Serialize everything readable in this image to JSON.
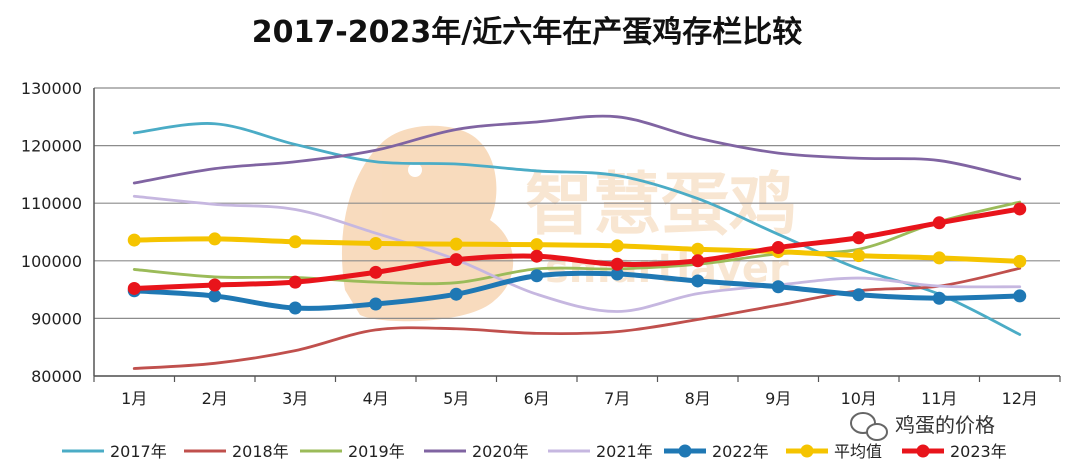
{
  "chart_data": {
    "type": "line",
    "title": "2017-2023年/近六年在产蛋鸡存栏比较",
    "xlabel": "",
    "ylabel": "",
    "categories": [
      "1月",
      "2月",
      "3月",
      "4月",
      "5月",
      "6月",
      "7月",
      "8月",
      "9月",
      "10月",
      "11月",
      "12月"
    ],
    "ylim": [
      80000,
      130000
    ],
    "yticks": [
      80000,
      90000,
      100000,
      110000,
      120000,
      130000
    ],
    "grid": true,
    "legend_position": "bottom",
    "series": [
      {
        "name": "2017年",
        "color": "#4bacc6",
        "emphasis": false,
        "values": [
          122200,
          123800,
          120200,
          117200,
          116800,
          115600,
          114800,
          110800,
          104600,
          98600,
          94200,
          87200
        ]
      },
      {
        "name": "2018年",
        "color": "#c0504d",
        "emphasis": false,
        "values": [
          81300,
          82200,
          84400,
          88000,
          88200,
          87400,
          87700,
          89800,
          92300,
          94800,
          95600,
          98700
        ]
      },
      {
        "name": "2019年",
        "color": "#9bbb59",
        "emphasis": false,
        "values": [
          98500,
          97200,
          97100,
          96300,
          96200,
          98600,
          98600,
          99400,
          101200,
          102000,
          106800,
          110200
        ]
      },
      {
        "name": "2020年",
        "color": "#8064a2",
        "emphasis": false,
        "values": [
          113500,
          116000,
          117200,
          119200,
          122800,
          124100,
          125000,
          121300,
          118700,
          117800,
          117400,
          114200
        ]
      },
      {
        "name": "2021年",
        "color": "#c6b7e0",
        "emphasis": false,
        "values": [
          111200,
          109800,
          108900,
          104800,
          100200,
          94200,
          91200,
          94300,
          95800,
          97000,
          95600,
          95500
        ]
      },
      {
        "name": "2022年",
        "color": "#1f78b4",
        "emphasis": true,
        "values": [
          94800,
          93900,
          91800,
          92500,
          94200,
          97400,
          97700,
          96500,
          95500,
          94100,
          93500,
          93900
        ]
      },
      {
        "name": "平均值",
        "color": "#f5c400",
        "emphasis": true,
        "values": [
          103600,
          103800,
          103300,
          103000,
          102900,
          102800,
          102600,
          102000,
          101600,
          100900,
          100500,
          99900
        ]
      },
      {
        "name": "2023年",
        "color": "#e8141b",
        "emphasis": true,
        "values": [
          95200,
          95800,
          96300,
          98000,
          100200,
          100800,
          99400,
          100000,
          102300,
          104000,
          106600,
          109000
        ]
      }
    ]
  },
  "watermark": {
    "text_cn": "智慧蛋鸡",
    "text_en": "smartlayer",
    "color": "#f6cfa8"
  },
  "badge": {
    "icon": "wechat-icon",
    "text": "鸡蛋的价格"
  }
}
